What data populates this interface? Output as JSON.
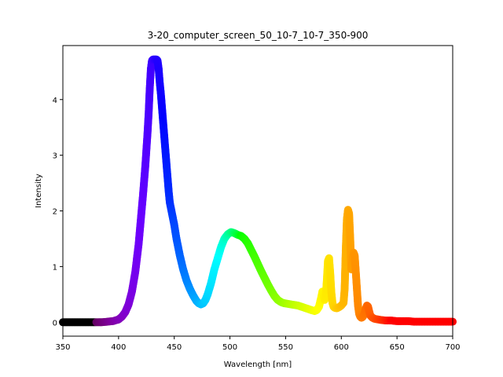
{
  "chart_data": {
    "type": "scatter",
    "title": "3-20_computer_screen_50_10-7_10-7_350-900",
    "xlabel": "Wavelength [nm]",
    "ylabel": "Intensity",
    "xlim": [
      350,
      700
    ],
    "ylim": [
      -0.25,
      4.97
    ],
    "xticks": [
      "350",
      "400",
      "450",
      "500",
      "550",
      "600",
      "650",
      "700"
    ],
    "yticks": [
      "0",
      "1",
      "2",
      "3",
      "4"
    ],
    "grid": false,
    "marker_color_note": "points colored by visible-spectrum color of wavelength; black outside visible range",
    "series": [
      {
        "x": [
          350,
          360,
          370,
          375,
          380,
          385,
          390,
          395,
          400,
          403,
          406,
          409,
          412,
          415,
          418,
          420,
          422,
          424,
          426,
          427,
          428,
          429,
          430,
          431,
          432,
          433,
          434,
          435,
          436,
          437,
          438,
          439,
          440,
          441,
          442,
          443,
          444,
          445,
          446,
          448,
          450,
          452,
          455,
          458,
          461,
          464,
          467,
          470,
          472,
          474,
          476,
          478,
          480,
          483,
          486,
          489,
          492,
          495,
          498,
          501,
          504,
          507,
          510,
          513,
          516,
          519,
          522,
          525,
          528,
          531,
          534,
          537,
          540,
          543,
          546,
          549,
          552,
          555,
          558,
          561,
          564,
          567,
          570,
          573,
          576,
          578,
          580,
          582,
          583,
          584,
          585,
          586,
          587,
          588,
          589,
          590,
          591,
          592,
          593,
          594,
          596,
          598,
          600,
          602,
          603,
          604,
          605,
          606,
          607,
          608,
          609,
          610,
          611,
          612,
          613,
          614,
          615,
          616,
          617,
          618,
          619,
          620,
          621,
          622,
          623,
          624,
          625,
          626,
          628,
          630,
          633,
          636,
          640,
          645,
          650,
          655,
          660,
          665,
          670,
          675,
          680,
          685,
          690,
          695,
          700
        ],
        "y": [
          0,
          0,
          0,
          0,
          0,
          0,
          0.01,
          0.02,
          0.05,
          0.1,
          0.18,
          0.32,
          0.55,
          0.9,
          1.4,
          1.85,
          2.3,
          2.8,
          3.4,
          3.75,
          4.2,
          4.55,
          4.7,
          4.72,
          4.72,
          4.72,
          4.72,
          4.7,
          4.55,
          4.3,
          4.1,
          3.85,
          3.6,
          3.35,
          3.1,
          2.85,
          2.6,
          2.35,
          2.15,
          1.95,
          1.75,
          1.5,
          1.2,
          0.95,
          0.75,
          0.6,
          0.48,
          0.38,
          0.34,
          0.32,
          0.34,
          0.4,
          0.5,
          0.7,
          0.95,
          1.15,
          1.35,
          1.5,
          1.58,
          1.62,
          1.6,
          1.57,
          1.55,
          1.5,
          1.42,
          1.3,
          1.18,
          1.05,
          0.92,
          0.8,
          0.68,
          0.57,
          0.47,
          0.4,
          0.36,
          0.34,
          0.33,
          0.32,
          0.31,
          0.3,
          0.28,
          0.26,
          0.24,
          0.22,
          0.2,
          0.22,
          0.28,
          0.45,
          0.55,
          0.5,
          0.4,
          0.45,
          0.75,
          1.1,
          1.15,
          0.9,
          0.55,
          0.35,
          0.28,
          0.26,
          0.25,
          0.27,
          0.3,
          0.35,
          0.6,
          1.3,
          1.85,
          2.02,
          1.95,
          1.5,
          0.95,
          1.1,
          1.25,
          1.2,
          0.9,
          0.6,
          0.3,
          0.15,
          0.1,
          0.08,
          0.09,
          0.12,
          0.18,
          0.25,
          0.3,
          0.28,
          0.2,
          0.12,
          0.08,
          0.06,
          0.05,
          0.04,
          0.03,
          0.03,
          0.02,
          0.02,
          0.02,
          0.01,
          0.01,
          0.01,
          0.01,
          0.01,
          0.01,
          0.01,
          0.01
        ]
      }
    ]
  }
}
